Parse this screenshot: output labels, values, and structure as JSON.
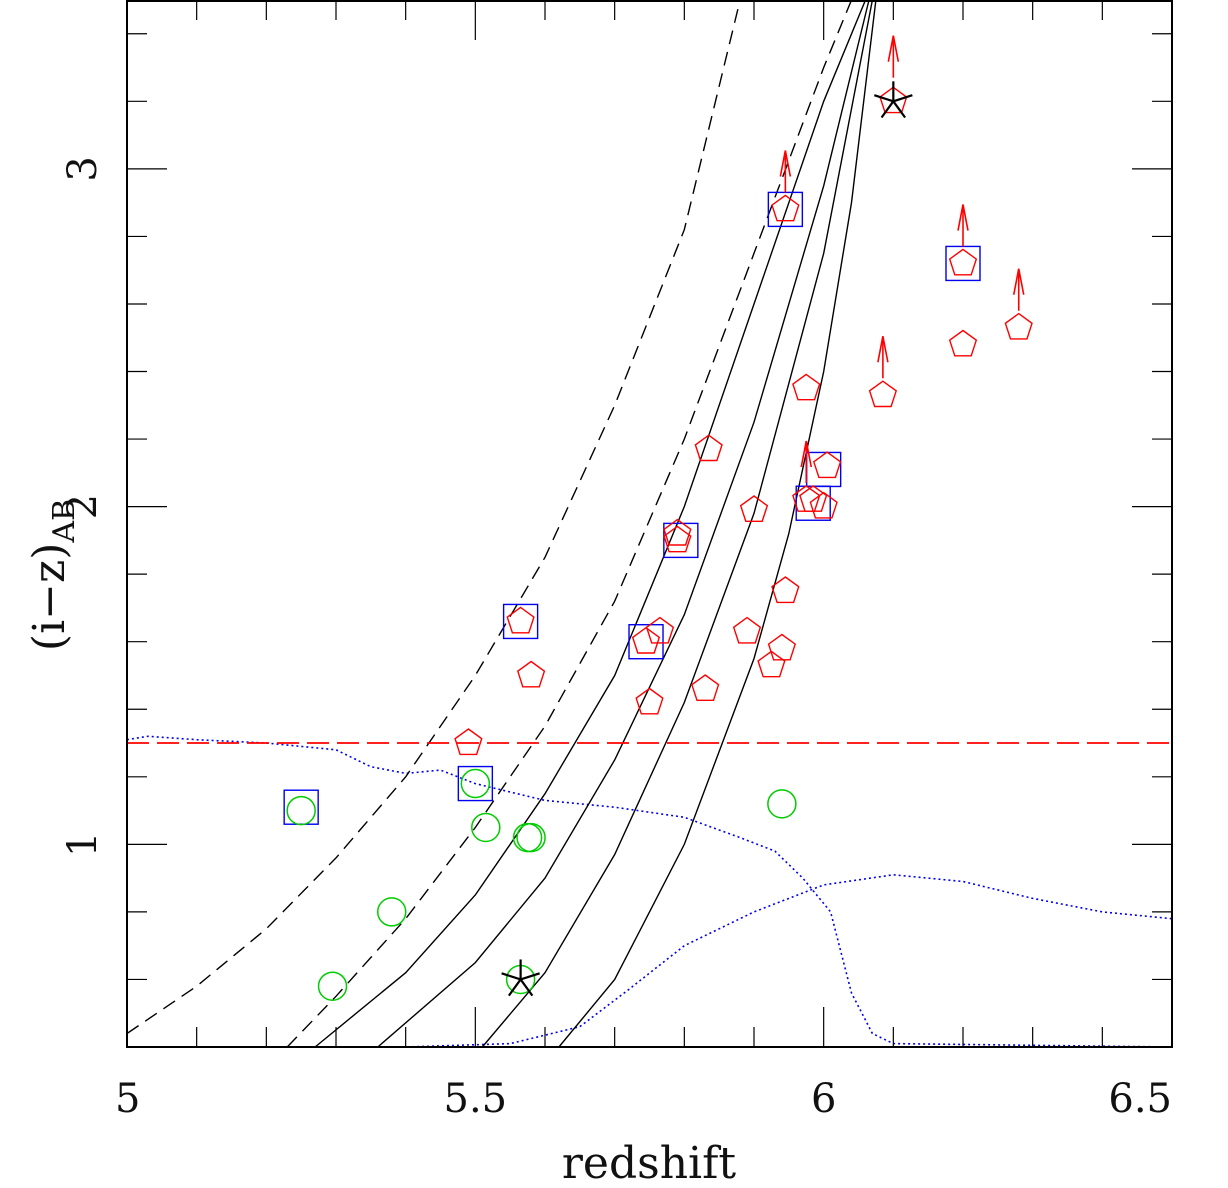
{
  "chart_data": {
    "type": "scatter",
    "xlabel": "redshift",
    "ylabel_main": "(i−z)",
    "ylabel_sub": "AB",
    "xlim": [
      5.0,
      6.5
    ],
    "ylim": [
      0.4,
      3.5
    ],
    "x_ticks": [
      {
        "value": 5.0,
        "label": "5"
      },
      {
        "value": 5.5,
        "label": "5.5"
      },
      {
        "value": 6.0,
        "label": "6"
      },
      {
        "value": 6.5,
        "label": "6.5"
      }
    ],
    "y_ticks": [
      {
        "value": 1,
        "label": "1"
      },
      {
        "value": 2,
        "label": "2"
      },
      {
        "value": 3,
        "label": "3"
      }
    ],
    "x_minor_step": 0.1,
    "y_minor_step": 0.2,
    "colors": {
      "pentagon": "#ff0000",
      "circle": "#00cc00",
      "square": "#0000ee",
      "star": "#000000",
      "threshold": "#ff0000",
      "filter_curve": "#0000ee",
      "track": "#000000"
    },
    "threshold_y": 1.3,
    "pentagons": [
      {
        "x": 5.565,
        "y": 1.66
      },
      {
        "x": 5.58,
        "y": 1.5
      },
      {
        "x": 5.49,
        "y": 1.3
      },
      {
        "x": 5.745,
        "y": 1.6
      },
      {
        "x": 5.765,
        "y": 1.63
      },
      {
        "x": 5.75,
        "y": 1.42
      },
      {
        "x": 5.79,
        "y": 1.92
      },
      {
        "x": 5.79,
        "y": 1.9
      },
      {
        "x": 5.83,
        "y": 1.46
      },
      {
        "x": 5.835,
        "y": 2.17
      },
      {
        "x": 5.89,
        "y": 1.63
      },
      {
        "x": 5.9,
        "y": 1.99
      },
      {
        "x": 5.925,
        "y": 1.53
      },
      {
        "x": 5.94,
        "y": 1.58
      },
      {
        "x": 5.945,
        "y": 1.75
      },
      {
        "x": 5.945,
        "y": 2.88
      },
      {
        "x": 5.975,
        "y": 2.02
      },
      {
        "x": 5.975,
        "y": 2.35
      },
      {
        "x": 5.985,
        "y": 2.02
      },
      {
        "x": 6.0,
        "y": 2.0
      },
      {
        "x": 6.005,
        "y": 2.12
      },
      {
        "x": 6.085,
        "y": 2.33
      },
      {
        "x": 6.1,
        "y": 3.2
      },
      {
        "x": 6.2,
        "y": 2.48
      },
      {
        "x": 6.2,
        "y": 2.72
      },
      {
        "x": 6.28,
        "y": 2.53
      }
    ],
    "circles": [
      {
        "x": 5.25,
        "y": 1.1
      },
      {
        "x": 5.295,
        "y": 0.58
      },
      {
        "x": 5.38,
        "y": 0.8
      },
      {
        "x": 5.5,
        "y": 1.18
      },
      {
        "x": 5.515,
        "y": 1.05
      },
      {
        "x": 5.575,
        "y": 1.02
      },
      {
        "x": 5.58,
        "y": 1.02
      },
      {
        "x": 5.565,
        "y": 0.6
      },
      {
        "x": 5.94,
        "y": 1.12
      }
    ],
    "squares": [
      {
        "x": 5.25,
        "y": 1.11
      },
      {
        "x": 5.5,
        "y": 1.18
      },
      {
        "x": 5.565,
        "y": 1.66
      },
      {
        "x": 5.745,
        "y": 1.6
      },
      {
        "x": 5.795,
        "y": 1.9
      },
      {
        "x": 5.945,
        "y": 2.88
      },
      {
        "x": 5.985,
        "y": 2.01
      },
      {
        "x": 6.0,
        "y": 2.11
      },
      {
        "x": 6.2,
        "y": 2.72
      }
    ],
    "stars": [
      {
        "x": 5.565,
        "y": 0.6
      },
      {
        "x": 6.1,
        "y": 3.2
      }
    ],
    "arrows": [
      {
        "x": 5.945,
        "y": 2.93
      },
      {
        "x": 5.975,
        "y": 2.07
      },
      {
        "x": 6.085,
        "y": 2.38
      },
      {
        "x": 6.1,
        "y": 3.27
      },
      {
        "x": 6.2,
        "y": 2.77
      },
      {
        "x": 6.28,
        "y": 2.58
      }
    ],
    "tracks_solid": [
      [
        [
          5.27,
          0.4
        ],
        [
          5.4,
          0.62
        ],
        [
          5.5,
          0.85
        ],
        [
          5.6,
          1.15
        ],
        [
          5.7,
          1.5
        ],
        [
          5.8,
          2.0
        ],
        [
          5.9,
          2.6
        ],
        [
          6.0,
          3.2
        ],
        [
          6.06,
          3.5
        ]
      ],
      [
        [
          5.36,
          0.4
        ],
        [
          5.5,
          0.65
        ],
        [
          5.6,
          0.9
        ],
        [
          5.7,
          1.25
        ],
        [
          5.8,
          1.68
        ],
        [
          5.9,
          2.25
        ],
        [
          6.0,
          2.95
        ],
        [
          6.065,
          3.5
        ]
      ],
      [
        [
          5.51,
          0.4
        ],
        [
          5.6,
          0.62
        ],
        [
          5.7,
          0.97
        ],
        [
          5.8,
          1.42
        ],
        [
          5.9,
          1.98
        ],
        [
          6.0,
          2.75
        ],
        [
          6.07,
          3.5
        ]
      ],
      [
        [
          5.62,
          0.4
        ],
        [
          5.7,
          0.6
        ],
        [
          5.8,
          1.0
        ],
        [
          5.9,
          1.55
        ],
        [
          5.95,
          1.92
        ],
        [
          6.0,
          2.4
        ],
        [
          6.04,
          2.9
        ],
        [
          6.075,
          3.5
        ]
      ]
    ],
    "tracks_dashed": [
      [
        [
          5.0,
          0.44
        ],
        [
          5.1,
          0.58
        ],
        [
          5.2,
          0.75
        ],
        [
          5.3,
          0.96
        ],
        [
          5.4,
          1.2
        ],
        [
          5.5,
          1.5
        ],
        [
          5.6,
          1.85
        ],
        [
          5.7,
          2.3
        ],
        [
          5.8,
          2.82
        ],
        [
          5.88,
          3.5
        ]
      ],
      [
        [
          5.23,
          0.4
        ],
        [
          5.3,
          0.55
        ],
        [
          5.4,
          0.78
        ],
        [
          5.5,
          1.05
        ],
        [
          5.6,
          1.35
        ],
        [
          5.7,
          1.72
        ],
        [
          5.8,
          2.2
        ],
        [
          5.9,
          2.75
        ],
        [
          6.0,
          3.3
        ],
        [
          6.04,
          3.5
        ]
      ]
    ],
    "filter_curves": [
      [
        [
          5.0,
          1.31
        ],
        [
          5.03,
          1.32
        ],
        [
          5.1,
          1.31
        ],
        [
          5.2,
          1.3
        ],
        [
          5.3,
          1.28
        ],
        [
          5.35,
          1.23
        ],
        [
          5.4,
          1.21
        ],
        [
          5.45,
          1.22
        ],
        [
          5.5,
          1.18
        ],
        [
          5.6,
          1.13
        ],
        [
          5.7,
          1.11
        ],
        [
          5.8,
          1.08
        ],
        [
          5.88,
          1.02
        ],
        [
          5.93,
          0.98
        ],
        [
          5.97,
          0.9
        ],
        [
          6.01,
          0.8
        ],
        [
          6.04,
          0.56
        ],
        [
          6.07,
          0.44
        ],
        [
          6.1,
          0.41
        ],
        [
          6.5,
          0.4
        ]
      ],
      [
        [
          5.0,
          0.4
        ],
        [
          5.4,
          0.4
        ],
        [
          5.55,
          0.41
        ],
        [
          5.65,
          0.46
        ],
        [
          5.72,
          0.57
        ],
        [
          5.8,
          0.7
        ],
        [
          5.9,
          0.8
        ],
        [
          6.0,
          0.88
        ],
        [
          6.1,
          0.91
        ],
        [
          6.2,
          0.89
        ],
        [
          6.3,
          0.84
        ],
        [
          6.4,
          0.8
        ],
        [
          6.5,
          0.78
        ]
      ]
    ]
  }
}
